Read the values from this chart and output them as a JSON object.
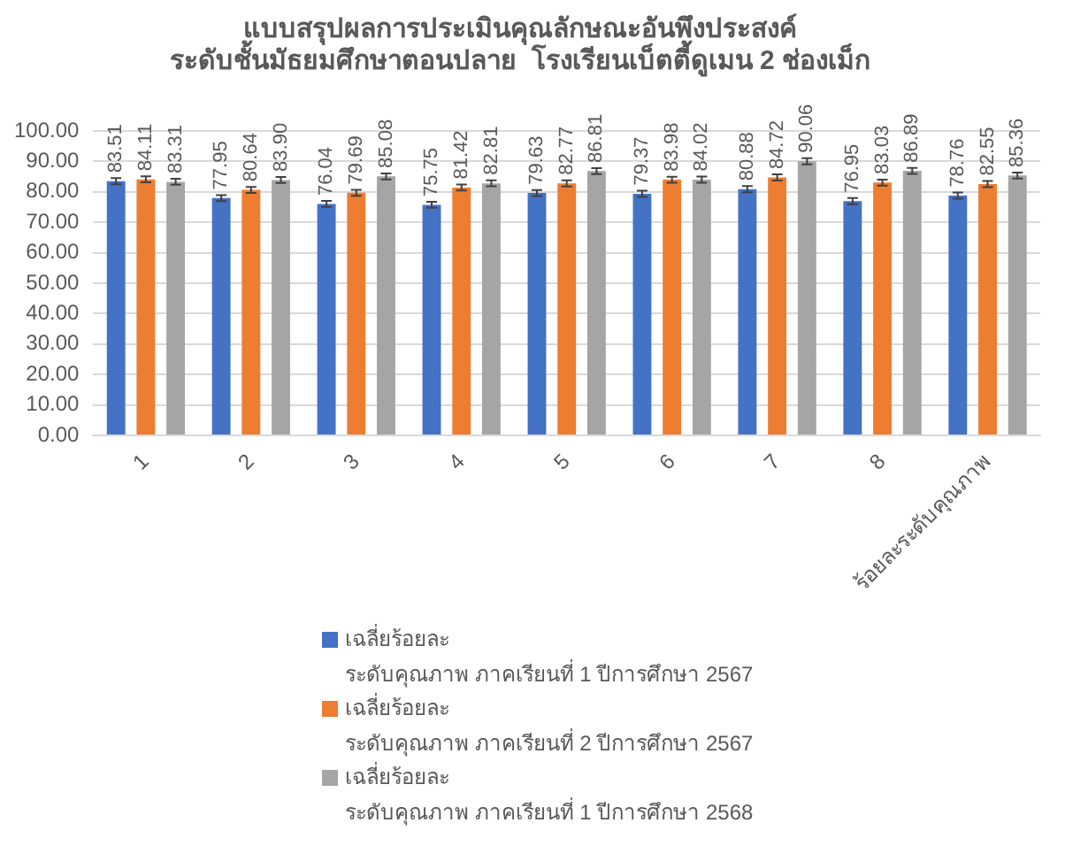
{
  "chart_data": {
    "type": "bar",
    "title": "แบบสรุปผลการประเมินคุณลักษณะอันพึงประสงค์",
    "subtitle": "ระดับชั้นมัธยมศึกษาตอนปลาย  โรงเรียนเบ็ตตี้ดูเมน 2 ช่องเม็ก",
    "categories": [
      "1",
      "2",
      "3",
      "4",
      "5",
      "6",
      "7",
      "8",
      "ร้อยละระดับคุณภาพ"
    ],
    "series": [
      {
        "name": "เฉลี่ยร้อยละ\nระดับคุณภาพ  ภาคเรียนที่ 1 ปีการศึกษา 2567",
        "color": "#4472c4",
        "values": [
          83.51,
          77.95,
          76.04,
          75.75,
          79.63,
          79.37,
          80.88,
          76.95,
          78.76
        ],
        "value_labels": [
          "83.51",
          "77.95",
          "76.04",
          "75.75",
          "79.63",
          "79.37",
          "80.88",
          "76.95",
          "78.76"
        ],
        "errors": [
          1,
          1,
          1,
          1,
          1,
          1,
          1,
          1,
          1
        ]
      },
      {
        "name": "เฉลี่ยร้อยละ\nระดับคุณภาพ  ภาคเรียนที่ 2 ปีการศึกษา 2567",
        "color": "#ed7d31",
        "values": [
          84.11,
          80.64,
          79.69,
          81.42,
          82.77,
          83.98,
          84.72,
          83.03,
          82.55
        ],
        "value_labels": [
          "84.11",
          "80.64",
          "79.69",
          "81.42",
          "82.77",
          "83.98",
          "84.72",
          "83.03",
          "82.55"
        ],
        "errors": [
          1,
          1,
          1,
          1,
          1,
          1,
          1,
          1,
          1
        ]
      },
      {
        "name": "เฉลี่ยร้อยละ\nระดับคุณภาพ  ภาคเรียนที่ 1 ปีการศึกษา 2568",
        "color": "#a5a5a5",
        "values": [
          83.31,
          83.9,
          85.08,
          82.81,
          86.81,
          84.02,
          90.06,
          86.89,
          85.36
        ],
        "value_labels": [
          "83.31",
          "83.90",
          "85.08",
          "82.81",
          "86.81",
          "84.02",
          "90.06",
          "86.89",
          "85.36"
        ],
        "errors": [
          1,
          1,
          1,
          1,
          1,
          1,
          1,
          1,
          1
        ]
      }
    ],
    "ylim": [
      0,
      100
    ],
    "yticks": [
      {
        "value": 0,
        "label": "0.00"
      },
      {
        "value": 10,
        "label": "10.00"
      },
      {
        "value": 20,
        "label": "20.00"
      },
      {
        "value": 30,
        "label": "30.00"
      },
      {
        "value": 40,
        "label": "40.00"
      },
      {
        "value": 50,
        "label": "50.00"
      },
      {
        "value": 60,
        "label": "60.00"
      },
      {
        "value": 70,
        "label": "70.00"
      },
      {
        "value": 80,
        "label": "80.00"
      },
      {
        "value": 90,
        "label": "90.00"
      },
      {
        "value": 100,
        "label": "100.00"
      }
    ],
    "grid": "y",
    "legend": "bottom left"
  }
}
